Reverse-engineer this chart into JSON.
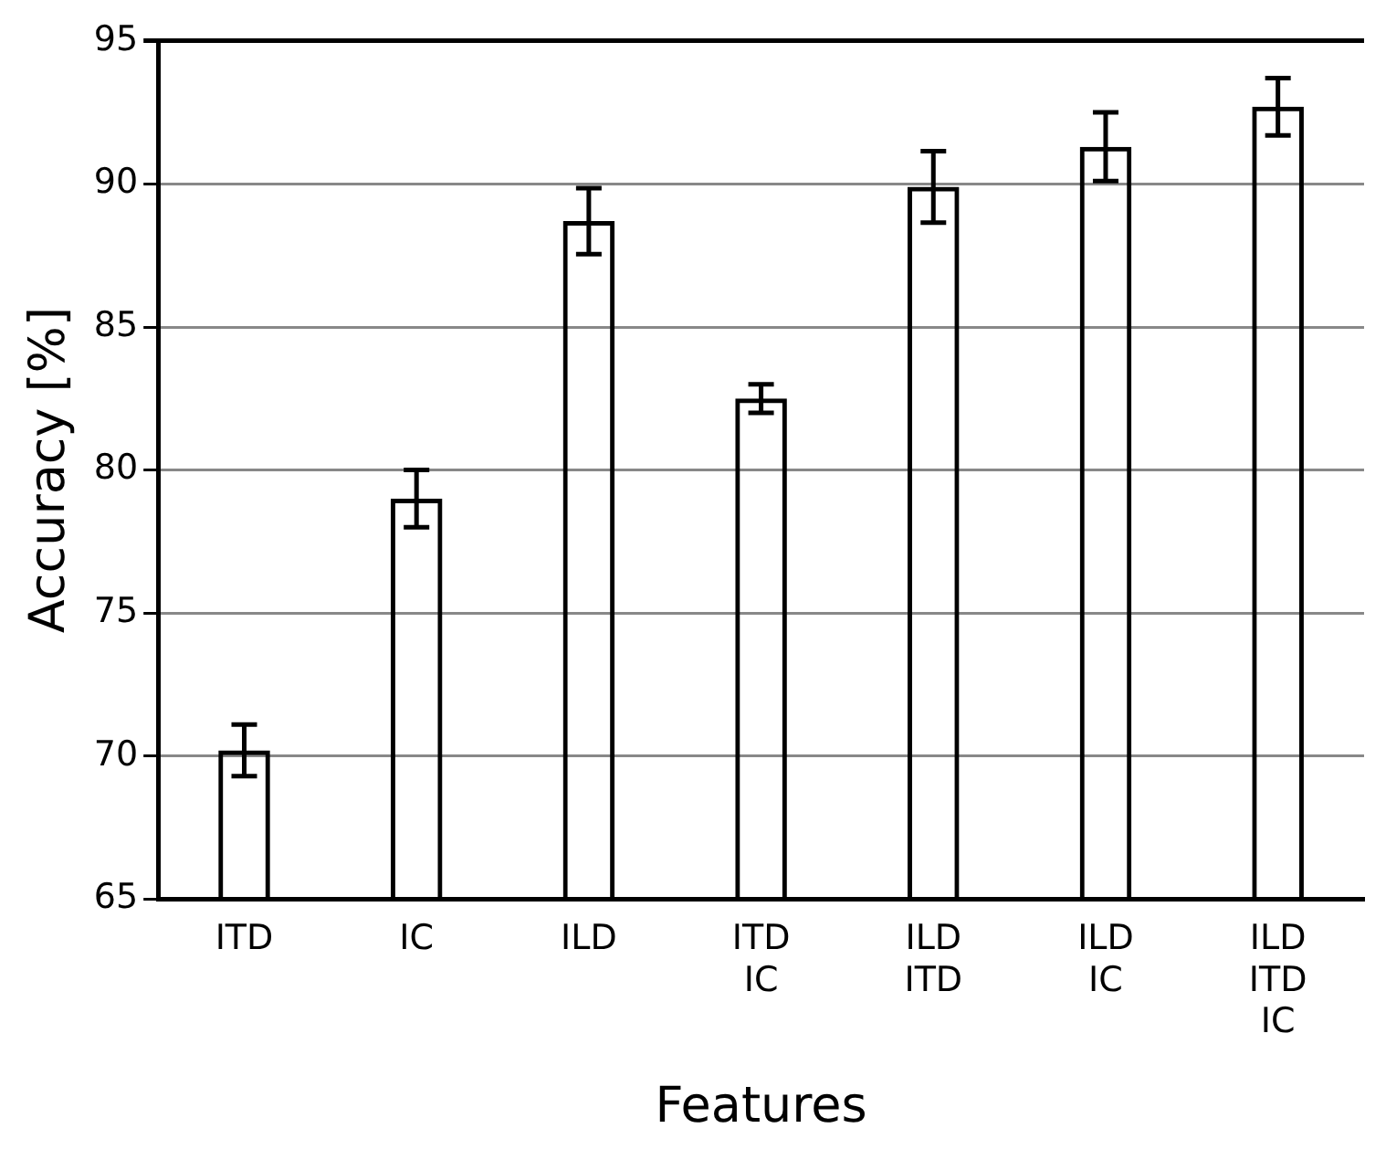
{
  "chart_data": {
    "type": "bar",
    "xlabel": "Features",
    "ylabel": "Accuracy [%]",
    "categories": [
      "ITD",
      "IC",
      "ILD",
      "ITD\nIC",
      "ILD\nITD",
      "ILD\nIC",
      "ILD\nITD\nIC"
    ],
    "values": [
      70.2,
      79.0,
      88.7,
      82.5,
      89.9,
      91.3,
      92.7
    ],
    "errors": [
      0.9,
      1.0,
      1.15,
      0.5,
      1.25,
      1.2,
      1.0
    ],
    "color": "#000000",
    "ylim": [
      65,
      95
    ],
    "yticks": [
      65,
      70,
      75,
      80,
      85,
      90,
      95
    ],
    "grid": "y",
    "legend": false
  }
}
